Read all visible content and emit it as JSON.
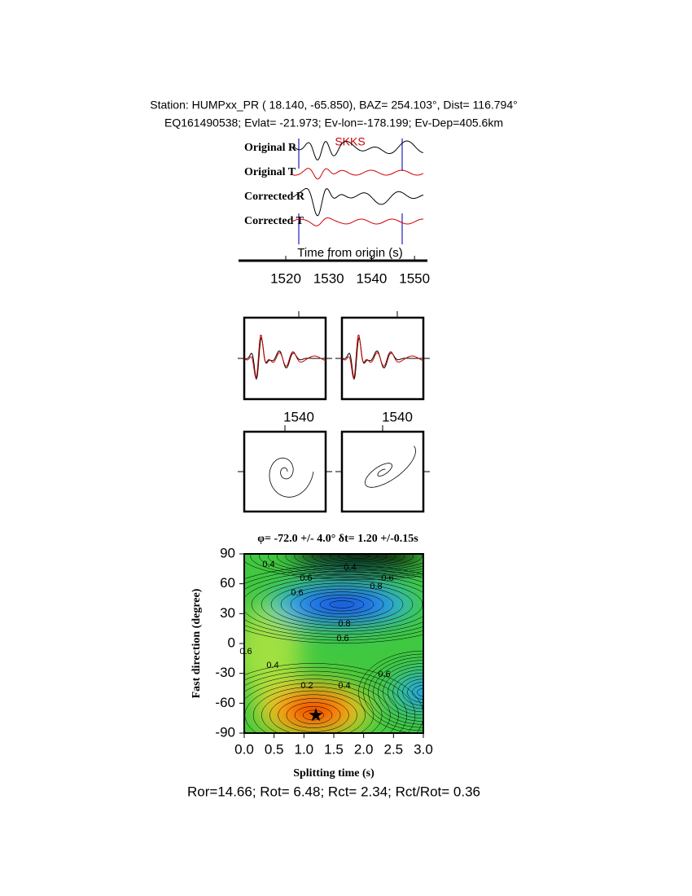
{
  "header": {
    "station_line": "Station: HUMPxx_PR (  18.140,  -65.850), BAZ=  254.103°, Dist=  116.794°",
    "event_line": "EQ161490538; Evlat= -21.973; Ev-lon=-178.199; Ev-Dep=405.6km"
  },
  "waveform_panel": {
    "trace_labels": [
      "Original R",
      "Original T",
      "Corrected R",
      "Corrected T"
    ],
    "phase_label": "SKKS",
    "xlabel": "Time from origin (s)",
    "xlim": [
      1509,
      1553
    ],
    "xticks": [
      1520,
      1530,
      1540,
      1550
    ]
  },
  "particle_panels": {
    "xticks": [
      1540,
      1540
    ]
  },
  "contour_panel": {
    "title": "φ= -72.0 +/- 4.0° δt= 1.20 +/-0.15s",
    "xlabel": "Splitting time (s)",
    "ylabel": "Fast direction (degree)",
    "xlim": [
      0,
      3
    ],
    "ylim": [
      -90,
      90
    ],
    "xticks": [
      {
        "value": 0,
        "label": "0.0"
      },
      0.5,
      {
        "value": 1,
        "label": "1.0"
      },
      1.5,
      {
        "value": 2,
        "label": "2.0"
      },
      2.5,
      {
        "value": 3,
        "label": "3.0"
      }
    ],
    "yticks": [
      90,
      60,
      30,
      0,
      -30,
      -60,
      -90
    ],
    "contour_labels": [
      "0.4",
      "0.4",
      "0.6",
      "0.8",
      "0.6",
      "0.6",
      "0.8",
      "0.6",
      "0.6",
      "0.4",
      "0.2",
      "0.4",
      "0.6"
    ],
    "best": {
      "x": 1.2,
      "y": -72
    }
  },
  "footer": "Ror=14.66; Rot= 6.48; Rct= 2.34; Rct/Rot= 0.36"
}
